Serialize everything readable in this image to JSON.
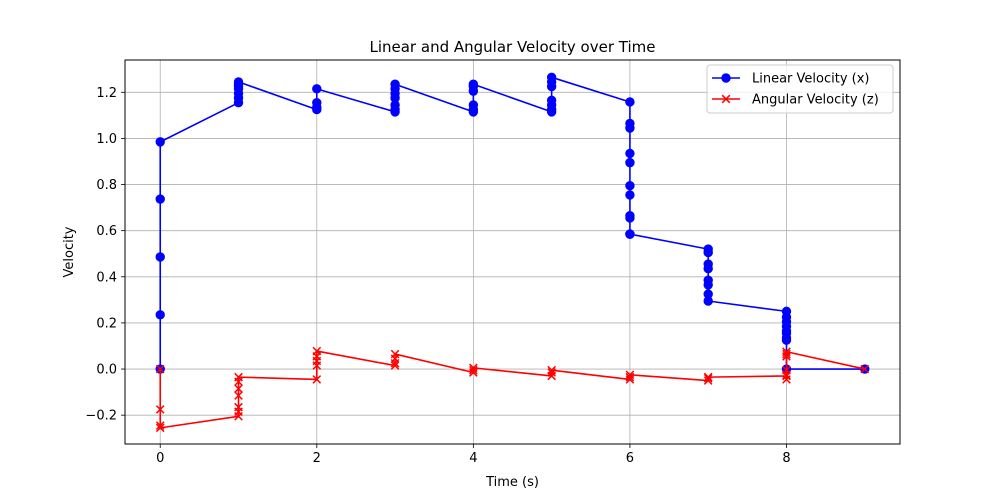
{
  "chart_data": {
    "type": "line",
    "title": "Linear and Angular Velocity over Time",
    "xlabel": "Time (s)",
    "ylabel": "Velocity",
    "xlim": [
      -0.45,
      9.45
    ],
    "ylim": [
      -0.325,
      1.34
    ],
    "xticks": [
      0,
      2,
      4,
      6,
      8
    ],
    "yticks": [
      -0.2,
      0.0,
      0.2,
      0.4,
      0.6,
      0.8,
      1.0,
      1.2
    ],
    "grid": true,
    "legend_position": "top-right",
    "series": [
      {
        "name": "Linear Velocity (x)",
        "color": "#0000ff",
        "marker": "circle",
        "x": [
          0,
          0,
          0,
          0,
          0,
          1,
          1,
          1,
          1,
          1,
          1,
          1,
          2,
          2,
          2,
          2,
          3,
          3,
          3,
          3,
          3,
          3,
          3,
          4,
          4,
          4,
          4,
          4,
          4,
          5,
          5,
          5,
          5,
          5,
          5,
          5,
          6,
          6,
          6,
          6,
          6,
          6,
          6,
          6,
          6,
          6,
          6,
          7,
          7,
          7,
          7,
          7,
          7,
          7,
          7,
          8,
          8,
          8,
          8,
          8,
          8,
          8,
          8,
          8,
          9
        ],
        "y": [
          0.0,
          0.235,
          0.486,
          0.737,
          0.985,
          1.155,
          1.175,
          1.195,
          1.215,
          1.225,
          1.235,
          1.245,
          1.125,
          1.135,
          1.155,
          1.215,
          1.115,
          1.125,
          1.145,
          1.175,
          1.195,
          1.215,
          1.235,
          1.115,
          1.125,
          1.145,
          1.205,
          1.225,
          1.235,
          1.115,
          1.125,
          1.145,
          1.165,
          1.225,
          1.245,
          1.265,
          1.158,
          1.065,
          1.045,
          0.935,
          0.895,
          0.795,
          0.755,
          0.665,
          0.655,
          0.585,
          0.585,
          0.52,
          0.505,
          0.455,
          0.435,
          0.385,
          0.365,
          0.325,
          0.295,
          0.25,
          0.225,
          0.205,
          0.185,
          0.165,
          0.155,
          0.135,
          0.125,
          0.0,
          0.0
        ]
      },
      {
        "name": "Angular Velocity (z)",
        "color": "#ff0000",
        "marker": "x",
        "x": [
          0,
          0,
          0,
          0,
          1,
          1,
          1,
          1,
          1,
          1,
          1,
          2,
          2,
          2,
          2,
          2,
          3,
          3,
          3,
          3,
          4,
          4,
          4,
          5,
          5,
          5,
          6,
          6,
          6,
          7,
          7,
          7,
          8,
          8,
          8,
          8,
          8,
          8,
          8,
          9
        ],
        "y": [
          0.0,
          -0.175,
          -0.245,
          -0.255,
          -0.205,
          -0.185,
          -0.165,
          -0.115,
          -0.085,
          -0.055,
          -0.035,
          -0.045,
          0.015,
          0.035,
          0.055,
          0.078,
          0.015,
          0.025,
          0.045,
          0.065,
          -0.015,
          -0.005,
          0.005,
          -0.03,
          -0.015,
          -0.005,
          -0.045,
          -0.035,
          -0.025,
          -0.05,
          -0.04,
          -0.035,
          -0.03,
          -0.045,
          -0.025,
          -0.005,
          0.055,
          0.065,
          0.075,
          0.0
        ]
      }
    ]
  }
}
